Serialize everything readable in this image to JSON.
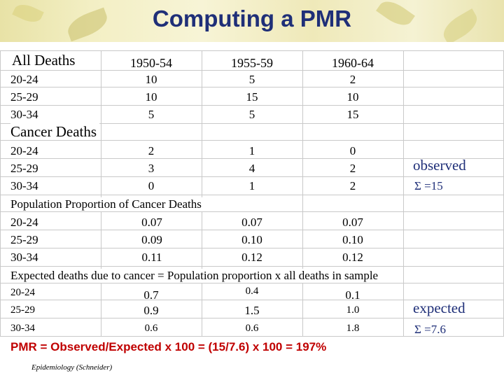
{
  "title": "Computing a PMR",
  "all_deaths": {
    "label": "All Deaths",
    "columns": [
      "1950-54",
      "1955-59",
      "1960-64"
    ],
    "rows": [
      {
        "age": "20-24",
        "values": [
          "10",
          "5",
          "2"
        ]
      },
      {
        "age": "25-29",
        "values": [
          "10",
          "15",
          "10"
        ]
      },
      {
        "age": "30-34",
        "values": [
          "5",
          "5",
          "15"
        ]
      }
    ]
  },
  "cancer_deaths": {
    "label": "Cancer Deaths",
    "rows": [
      {
        "age": "20-24",
        "values": [
          "2",
          "1",
          "0"
        ]
      },
      {
        "age": "25-29",
        "values": [
          "3",
          "4",
          "2"
        ]
      },
      {
        "age": "30-34",
        "values": [
          "0",
          "1",
          "2"
        ]
      }
    ],
    "observed_label": "observed",
    "observed_sum": "Σ =15"
  },
  "population_proportion": {
    "label": "Population Proportion of Cancer Deaths",
    "rows": [
      {
        "age": "20-24",
        "values": [
          "0.07",
          "0.07",
          "0.07"
        ]
      },
      {
        "age": "25-29",
        "values": [
          "0.09",
          "0.10",
          "0.10"
        ]
      },
      {
        "age": "30-34",
        "values": [
          "0.11",
          "0.12",
          "0.12"
        ]
      }
    ]
  },
  "expected_deaths": {
    "label": "Expected deaths due to cancer = Population proportion x all deaths in sample",
    "rows": [
      {
        "age": "20-24",
        "values": [
          "0.7",
          "0.4",
          "0.1"
        ]
      },
      {
        "age": "25-29",
        "values": [
          "0.9",
          "1.5",
          "1.0"
        ]
      },
      {
        "age": "30-34",
        "values": [
          "0.6",
          "0.6",
          "1.8"
        ]
      }
    ],
    "expected_label": "expected",
    "expected_sum": "Σ =7.6"
  },
  "formula": "PMR = Observed/Expected x 100 = (15/7.6) x 100 = 197%",
  "footer": "Epidemiology (Schneider)",
  "colors": {
    "title": "#1f2f78",
    "formula": "#c00000",
    "header_bg": "#f3efc4"
  }
}
